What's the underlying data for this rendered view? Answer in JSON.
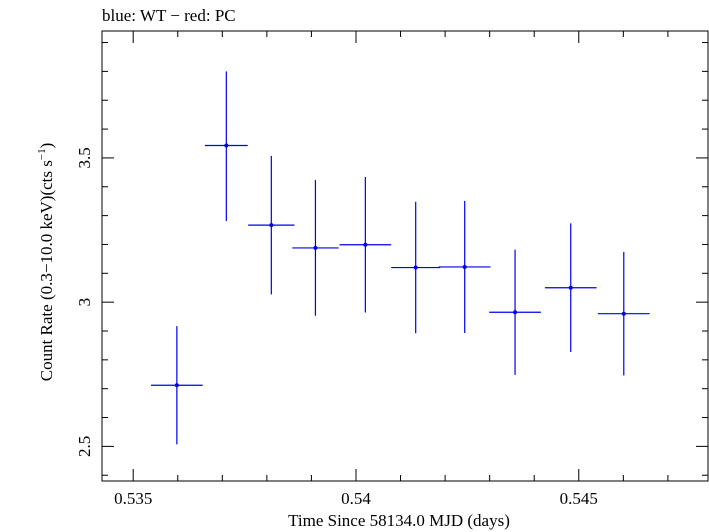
{
  "chart_data": {
    "type": "scatter",
    "title": "blue: WT − red: PC",
    "xlabel": "Time Since 58134.0 MJD (days)",
    "ylabel_main": "Count Rate (0.3−10.0 keV)(cts s",
    "ylabel_sup": "−1",
    "ylabel_close": ")",
    "xlim": [
      0.5343,
      0.5479
    ],
    "ylim": [
      2.38,
      3.94
    ],
    "xticks": [
      {
        "value": 0.535,
        "label": "0.535"
      },
      {
        "value": 0.54,
        "label": "0.54"
      },
      {
        "value": 0.545,
        "label": "0.545"
      }
    ],
    "yticks": [
      {
        "value": 2.5,
        "label": "2.5"
      },
      {
        "value": 3.0,
        "label": "3"
      },
      {
        "value": 3.5,
        "label": "3.5"
      }
    ],
    "x_minor_step": 0.001,
    "y_minor_step": 0.1,
    "grid": false,
    "series": [
      {
        "color": "#0000ee",
        "points": [
          {
            "x": 0.53598,
            "xerr": 0.00058,
            "y": 2.712,
            "yerr_low": 0.205,
            "yerr_high": 0.205
          },
          {
            "x": 0.53709,
            "xerr": 0.00048,
            "y": 3.543,
            "yerr_low": 0.262,
            "yerr_high": 0.257
          },
          {
            "x": 0.5381,
            "xerr": 0.00052,
            "y": 3.267,
            "yerr_low": 0.24,
            "yerr_high": 0.24
          },
          {
            "x": 0.53909,
            "xerr": 0.00052,
            "y": 3.188,
            "yerr_low": 0.235,
            "yerr_high": 0.235
          },
          {
            "x": 0.54021,
            "xerr": 0.00058,
            "y": 3.199,
            "yerr_low": 0.235,
            "yerr_high": 0.235
          },
          {
            "x": 0.54134,
            "xerr": 0.00055,
            "y": 3.12,
            "yerr_low": 0.228,
            "yerr_high": 0.228
          },
          {
            "x": 0.54244,
            "xerr": 0.00058,
            "y": 3.122,
            "yerr_low": 0.229,
            "yerr_high": 0.229
          },
          {
            "x": 0.54357,
            "xerr": 0.00058,
            "y": 2.965,
            "yerr_low": 0.217,
            "yerr_high": 0.217
          },
          {
            "x": 0.54482,
            "xerr": 0.00058,
            "y": 3.05,
            "yerr_low": 0.223,
            "yerr_high": 0.223
          },
          {
            "x": 0.54601,
            "xerr": 0.00058,
            "y": 2.96,
            "yerr_low": 0.214,
            "yerr_high": 0.214
          }
        ]
      }
    ]
  }
}
